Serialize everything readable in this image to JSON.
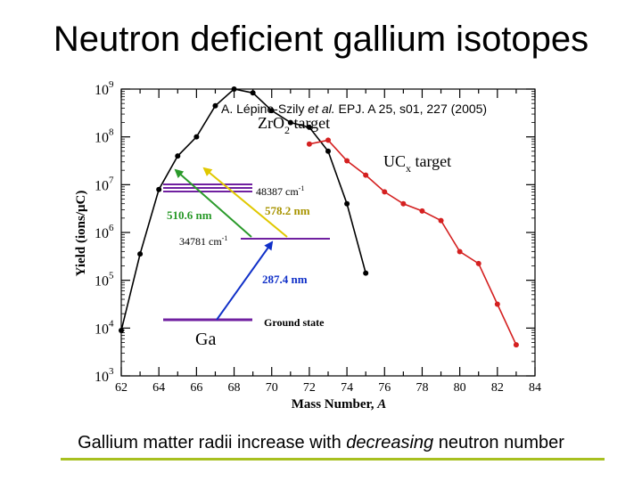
{
  "slide": {
    "title": "Neutron deficient gallium isotopes",
    "citation_prefix": "A. Lépine-Szily ",
    "citation_etal": "et al.",
    "citation_suffix": " EPJ. A 25, s01, 227 (2005)",
    "footer_prefix": "Gallium matter radii increase with ",
    "footer_emph": "decreasing",
    "footer_suffix": " neutron number"
  },
  "chart_data": {
    "type": "line",
    "xlabel": "Mass Number,",
    "xlabel_var": "A",
    "ylabel": "Yield (ions/μC)",
    "xlim": [
      62,
      84
    ],
    "ylim_log10": [
      3,
      9
    ],
    "y_scale": "log",
    "x_ticks": [
      62,
      64,
      66,
      68,
      70,
      72,
      74,
      76,
      78,
      80,
      82,
      84
    ],
    "y_ticks": [
      {
        "base": "10",
        "exp": "3"
      },
      {
        "base": "10",
        "exp": "4"
      },
      {
        "base": "10",
        "exp": "5"
      },
      {
        "base": "10",
        "exp": "6"
      },
      {
        "base": "10",
        "exp": "7"
      },
      {
        "base": "10",
        "exp": "8"
      },
      {
        "base": "10",
        "exp": "9"
      }
    ],
    "series": [
      {
        "name_main": "ZrO",
        "name_sub": "2",
        "name_tail": " target",
        "color": "#000000",
        "x": [
          62,
          63,
          64,
          65,
          66,
          67,
          68,
          69,
          70,
          71,
          72,
          73,
          74,
          75
        ],
        "log10_y": [
          3.95,
          5.55,
          6.9,
          7.6,
          8.0,
          8.65,
          9.0,
          8.92,
          8.55,
          8.3,
          8.2,
          7.7,
          6.6,
          5.15
        ]
      },
      {
        "name_main": "UC",
        "name_sub": "x",
        "name_tail": " target",
        "color": "#d42020",
        "x": [
          72,
          73,
          74,
          75,
          76,
          77,
          78,
          79,
          80,
          81,
          82,
          83
        ],
        "log10_y": [
          7.85,
          7.93,
          7.5,
          7.2,
          6.85,
          6.6,
          6.45,
          6.25,
          5.6,
          5.35,
          4.5,
          3.65
        ]
      }
    ],
    "inset": {
      "element": "Ga",
      "levels": [
        {
          "label": "48387 cm",
          "sup": "-1"
        },
        {
          "label": "34781 cm",
          "sup": "-1"
        },
        {
          "label": "Ground state",
          "sup": ""
        }
      ],
      "transitions": [
        {
          "label": "510.6 nm",
          "color": "#2a9a2a"
        },
        {
          "label": "578.2 nm",
          "color": "#c8b400"
        },
        {
          "label": "287.4 nm",
          "color": "#1030c8"
        }
      ]
    }
  }
}
